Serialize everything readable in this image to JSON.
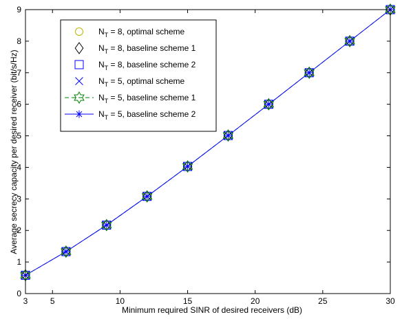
{
  "chart_data": {
    "type": "line",
    "xlabel": "Minimum required SINR of desired receivers (dB)",
    "ylabel": "Average secrecy capacity per desired receiver (bit/s/Hz)",
    "xlim": [
      3,
      30
    ],
    "ylim": [
      0,
      9
    ],
    "xticks": [
      5,
      10,
      15,
      20,
      25,
      30
    ],
    "yticks": [
      0,
      1,
      2,
      3,
      4,
      5,
      6,
      7,
      8,
      9
    ],
    "grid": false,
    "legend_position": "top-left",
    "x": [
      3,
      6,
      9,
      12,
      15,
      18,
      21,
      24,
      27,
      30
    ],
    "series": [
      {
        "name": "N_T = 8, optimal scheme",
        "legend": {
          "main": "N",
          "sub": "T",
          "rest": " = 8, optimal scheme"
        },
        "marker": "circle",
        "line": "none",
        "color": "#b8b800",
        "values": [
          0.58,
          1.33,
          2.17,
          3.08,
          4.03,
          5.01,
          6.0,
          7.0,
          8.0,
          9.0
        ]
      },
      {
        "name": "N_T = 8, baseline scheme 1",
        "legend": {
          "main": "N",
          "sub": "T",
          "rest": " = 8, baseline scheme 1"
        },
        "marker": "diamond",
        "line": "none",
        "color": "#000000",
        "values": [
          0.58,
          1.33,
          2.17,
          3.08,
          4.03,
          5.01,
          6.0,
          7.0,
          8.0,
          9.0
        ]
      },
      {
        "name": "N_T = 8, baseline scheme 2",
        "legend": {
          "main": "N",
          "sub": "T",
          "rest": " = 8, baseline scheme 2"
        },
        "marker": "square",
        "line": "none",
        "color": "#0000ff",
        "values": [
          0.58,
          1.33,
          2.17,
          3.08,
          4.03,
          5.01,
          6.0,
          7.0,
          8.0,
          9.0
        ]
      },
      {
        "name": "N_T = 5, optimal scheme",
        "legend": {
          "main": "N",
          "sub": "T",
          "rest": " = 5, optimal scheme"
        },
        "marker": "x",
        "line": "none",
        "color": "#0000ff",
        "values": [
          0.58,
          1.33,
          2.17,
          3.08,
          4.03,
          5.01,
          6.0,
          7.0,
          8.0,
          9.0
        ]
      },
      {
        "name": "N_T = 5, baseline scheme 1",
        "legend": {
          "main": "N",
          "sub": "T",
          "rest": " = 5, baseline scheme 1"
        },
        "marker": "hexagram",
        "line": "dashed",
        "color": "#008000",
        "values": [
          0.58,
          1.33,
          2.17,
          3.08,
          4.03,
          5.01,
          6.0,
          7.0,
          8.0,
          9.0
        ]
      },
      {
        "name": "N_T = 5, baseline scheme 2",
        "legend": {
          "main": "N",
          "sub": "T",
          "rest": " = 5, baseline scheme 2"
        },
        "marker": "asterisk",
        "line": "solid",
        "color": "#0000ff",
        "values": [
          0.58,
          1.33,
          2.17,
          3.08,
          4.03,
          5.01,
          6.0,
          7.0,
          8.0,
          9.0
        ]
      }
    ]
  }
}
